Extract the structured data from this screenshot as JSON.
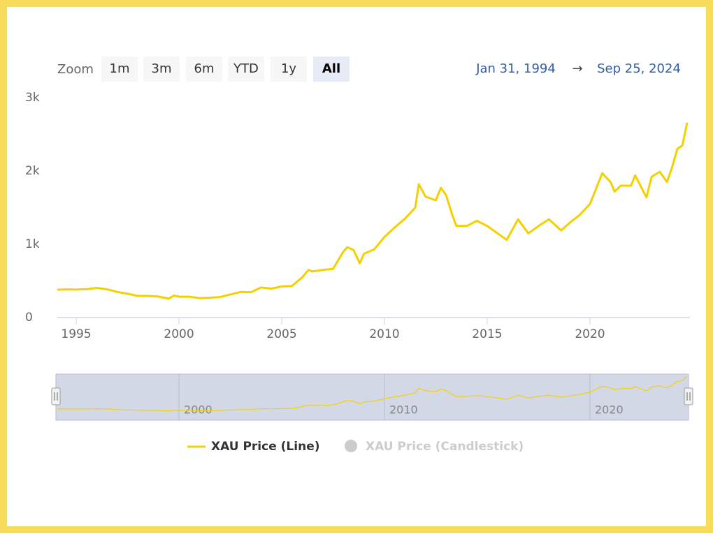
{
  "chart_data": {
    "type": "line",
    "range_selector": {
      "zoom_label": "Zoom",
      "buttons": [
        "1m",
        "3m",
        "6m",
        "YTD",
        "1y",
        "All"
      ],
      "selected": 5,
      "from": "Jan 31, 1994",
      "arrow": "→",
      "to": "Sep 25, 2024"
    },
    "x": [
      1994.08,
      1994.5,
      1995.0,
      1995.5,
      1996.0,
      1996.5,
      1997.0,
      1997.5,
      1998.0,
      1998.5,
      1999.0,
      1999.5,
      1999.75,
      2000.0,
      2000.5,
      2001.0,
      2001.5,
      2002.0,
      2002.5,
      2003.0,
      2003.5,
      2004.0,
      2004.5,
      2005.0,
      2005.5,
      2006.0,
      2006.3,
      2006.5,
      2007.0,
      2007.5,
      2008.0,
      2008.2,
      2008.5,
      2008.8,
      2009.0,
      2009.5,
      2010.0,
      2010.5,
      2011.0,
      2011.5,
      2011.67,
      2012.0,
      2012.5,
      2012.75,
      2013.0,
      2013.3,
      2013.5,
      2014.0,
      2014.5,
      2015.0,
      2015.5,
      2015.95,
      2016.5,
      2017.0,
      2017.5,
      2018.0,
      2018.6,
      2019.0,
      2019.5,
      2020.0,
      2020.6,
      2021.0,
      2021.2,
      2021.5,
      2022.0,
      2022.2,
      2022.75,
      2023.0,
      2023.4,
      2023.75,
      2024.0,
      2024.25,
      2024.5,
      2024.73
    ],
    "series": [
      {
        "name": "XAU Price (Line)",
        "color": "#f5d000",
        "values": [
          380,
          385,
          382,
          387,
          405,
          385,
          350,
          325,
          295,
          295,
          287,
          258,
          300,
          285,
          285,
          265,
          270,
          280,
          315,
          350,
          345,
          410,
          395,
          425,
          430,
          550,
          650,
          630,
          650,
          665,
          900,
          960,
          920,
          740,
          870,
          930,
          1100,
          1230,
          1350,
          1500,
          1820,
          1650,
          1600,
          1770,
          1670,
          1400,
          1250,
          1250,
          1320,
          1250,
          1150,
          1060,
          1340,
          1150,
          1250,
          1340,
          1190,
          1290,
          1400,
          1550,
          1970,
          1850,
          1720,
          1800,
          1800,
          1940,
          1640,
          1920,
          1990,
          1850,
          2050,
          2300,
          2350,
          2660
        ]
      }
    ],
    "hidden_series": [
      {
        "name": "XAU Price (Candlestick)",
        "color": "#cccccc"
      }
    ],
    "xlim": [
      1994.08,
      2024.73
    ],
    "xticks": [
      1995,
      2000,
      2005,
      2010,
      2015,
      2020
    ],
    "ylim": [
      0,
      3000
    ],
    "yticks": [
      0,
      {
        "value": 1000,
        "label": "1k"
      },
      {
        "value": 2000,
        "label": "2k"
      },
      {
        "value": 3000,
        "label": "3k"
      }
    ],
    "navigator": {
      "xticks": [
        2000,
        2010,
        2020
      ]
    }
  }
}
